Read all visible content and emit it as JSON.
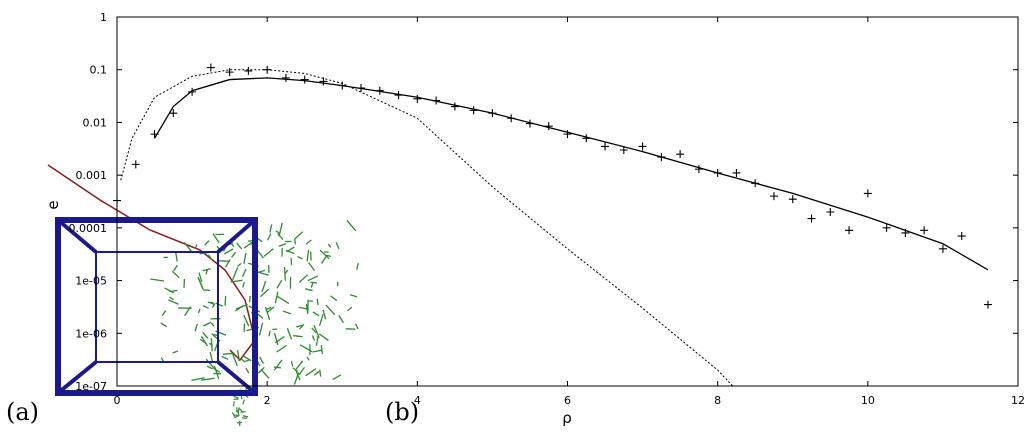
{
  "panel_labels": [
    "(a)",
    "(b)"
  ],
  "chart_data": {
    "type": "scatter",
    "xlabel": "ρ",
    "ylabel": "e",
    "xlim": [
      0,
      12
    ],
    "xticks": [
      0,
      2,
      4,
      6,
      8,
      10,
      12
    ],
    "ylim": [
      1e-07,
      1
    ],
    "log_y": true,
    "yticks": [
      {
        "value": 1e-07,
        "label": "1e-07"
      },
      {
        "value": 1e-06,
        "label": "1e-06"
      },
      {
        "value": 1e-05,
        "label": "1e-05"
      },
      0.0001,
      0.001,
      0.01,
      0.1,
      1
    ],
    "series": [
      {
        "kind": "markers",
        "color": "#000000",
        "x": [
          0,
          0.25,
          0.5,
          0.75,
          1,
          1.25,
          1.5,
          1.75,
          2,
          2.25,
          2.5,
          2.75,
          3,
          3.25,
          3.5,
          3.75,
          4,
          4.25,
          4.5,
          4.75,
          5,
          5.25,
          5.5,
          5.75,
          6,
          6.25,
          6.5,
          6.75,
          7,
          7.25,
          7.5,
          7.75,
          8,
          8.25,
          8.5,
          8.75,
          9,
          9.25,
          9.5,
          9.75,
          10,
          10.25,
          10.5,
          10.75,
          11,
          11.25,
          11.6
        ],
        "values": [
          0.00033,
          0.0016,
          0.006,
          0.015,
          0.038,
          0.11,
          0.09,
          0.095,
          0.1,
          0.07,
          0.065,
          0.06,
          0.05,
          0.045,
          0.04,
          0.033,
          0.028,
          0.026,
          0.02,
          0.017,
          0.015,
          0.012,
          0.0095,
          0.0085,
          0.006,
          0.005,
          0.0035,
          0.003,
          0.0035,
          0.0022,
          0.0025,
          0.0013,
          0.0011,
          0.0011,
          0.0007,
          0.0004,
          0.00035,
          0.00015,
          0.0002,
          9e-05,
          0.00045,
          0.0001,
          8e-05,
          9e-05,
          4e-05,
          7e-05,
          3.5e-06
        ]
      },
      {
        "kind": "solid",
        "color": "#000000",
        "x": [
          0.5,
          0.75,
          1,
          1.5,
          2,
          2.5,
          3,
          4,
          5,
          6,
          7,
          8,
          9,
          10,
          11,
          11.6
        ],
        "values": [
          0.005,
          0.02,
          0.04,
          0.065,
          0.07,
          0.062,
          0.05,
          0.03,
          0.015,
          0.0065,
          0.0028,
          0.0011,
          0.00045,
          0.00016,
          5e-05,
          1.6e-05
        ]
      },
      {
        "kind": "dotted",
        "color": "#000000",
        "x": [
          0.05,
          0.2,
          0.5,
          1,
          1.5,
          2,
          2.5,
          3,
          4,
          5,
          6,
          7,
          8,
          8.2
        ],
        "values": [
          0.0008,
          0.005,
          0.03,
          0.075,
          0.1,
          0.1,
          0.085,
          0.055,
          0.012,
          0.0006,
          4e-05,
          3e-06,
          2e-07,
          1e-07
        ]
      }
    ]
  }
}
